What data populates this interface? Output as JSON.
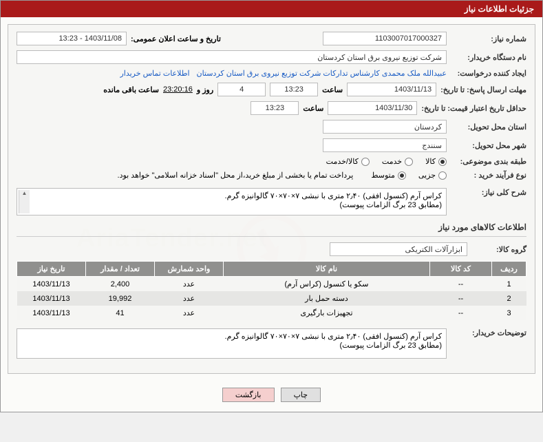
{
  "header": {
    "title": "جزئیات اطلاعات نیاز"
  },
  "fields": {
    "need_no_label": "شماره نیاز:",
    "need_no": "1103007017000327",
    "announce_label": "تاریخ و ساعت اعلان عمومی:",
    "announce_value": "1403/11/08 - 13:23",
    "buyer_device_label": "نام دستگاه خریدار:",
    "buyer_device": "شرکت توزیع نیروی برق استان کردستان",
    "requester_label": "ایجاد کننده درخواست:",
    "requester": "عبیدالله ملک محمدی کارشناس تدارکات شرکت توزیع نیروی برق استان کردستان",
    "contact_link": "اطلاعات تماس خریدار",
    "deadline_label": "مهلت ارسال پاسخ: تا تاریخ:",
    "deadline_date": "1403/11/13",
    "time_label": "ساعت",
    "deadline_time": "13:23",
    "days_remaining": "4",
    "days_and": "روز و",
    "countdown": "23:20:16",
    "remaining_suffix": "ساعت باقی مانده",
    "validity_label": "حداقل تاریخ اعتبار قیمت: تا تاریخ:",
    "validity_date": "1403/11/30",
    "validity_time": "13:23",
    "province_label": "استان محل تحویل:",
    "province": "کردستان",
    "city_label": "شهر محل تحویل:",
    "city": "سنندج",
    "category_label": "طبقه بندی موضوعی:",
    "radio_kala": "کالا",
    "radio_khadamat": "خدمت",
    "radio_both": "کالا/خدمت",
    "process_label": "نوع فرآیند خرید :",
    "radio_partial": "جزیی",
    "radio_medium": "متوسط",
    "payment_note": "پرداخت تمام یا بخشی از مبلغ خرید،از محل \"اسناد خزانه اسلامی\" خواهد بود.",
    "summary_label": "شرح کلی نیاز:",
    "summary_line1": "کراس آرم (کنسول افقی) ۲٫۴۰ متری با نبشی ۷×۷۰×۷۰ گالوانیزه گرم.",
    "summary_line2": "(مطابق 23 برگ الزامات پیوست)",
    "goods_info_title": "اطلاعات کالاهای مورد نیاز",
    "group_label": "گروه کالا:",
    "group_value": "ابزارآلات الکتریکی",
    "notes_label": "توضیحات خریدار:",
    "notes_line1": "کراس آرم (کنسول افقی) ۲٫۴۰ متری با نبشی ۷×۷۰×۷۰ گالوانیزه گرم.",
    "notes_line2": "(مطابق 23 برگ الزامات پیوست)"
  },
  "table": {
    "headers": {
      "row": "ردیف",
      "code": "کد کالا",
      "name": "نام کالا",
      "unit": "واحد شمارش",
      "qty": "تعداد / مقدار",
      "date": "تاریخ نیاز"
    },
    "rows": [
      {
        "row": "1",
        "code": "--",
        "name": "سکو یا کنسول (کراس آرم)",
        "unit": "عدد",
        "qty": "2,400",
        "date": "1403/11/13"
      },
      {
        "row": "2",
        "code": "--",
        "name": "دسته حمل بار",
        "unit": "عدد",
        "qty": "19,992",
        "date": "1403/11/13"
      },
      {
        "row": "3",
        "code": "--",
        "name": "تجهیزات بارگیری",
        "unit": "عدد",
        "qty": "41",
        "date": "1403/11/13"
      }
    ]
  },
  "buttons": {
    "print": "چاپ",
    "back": "بازگشت"
  },
  "watermark_text": "AriaTender.net"
}
